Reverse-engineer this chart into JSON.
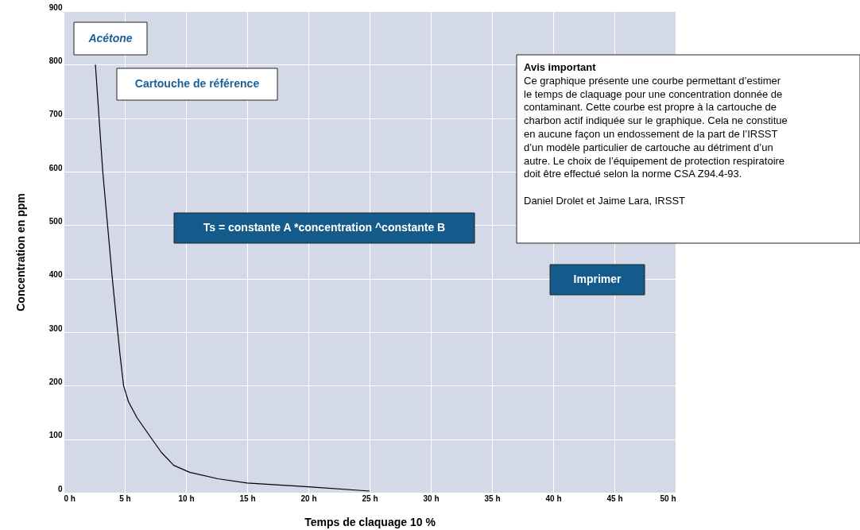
{
  "chart_data": {
    "type": "line",
    "xlabel": "Temps de claquage 10 %",
    "ylabel": "Concentration en ppm",
    "x": [
      2.6,
      3.2,
      4.0,
      4.6,
      4.9,
      5.3,
      6.0,
      7.1,
      8.0,
      9.0,
      10.3,
      12.6,
      15.0,
      20.0,
      25.0
    ],
    "series": [
      {
        "color": "#000000",
        "values": [
          800,
          600,
          396,
          260,
          200,
          170,
          140,
          104,
          75,
          51,
          38,
          26,
          18,
          11,
          3
        ]
      }
    ],
    "xlim": [
      0,
      50
    ],
    "ylim": [
      0,
      900
    ],
    "xticks": [
      {
        "value": 0,
        "label": "0 h"
      },
      {
        "value": 5,
        "label": "5 h"
      },
      {
        "value": 10,
        "label": "10 h"
      },
      {
        "value": 15,
        "label": "15 h"
      },
      {
        "value": 20,
        "label": "20 h"
      },
      {
        "value": 25,
        "label": "25 h"
      },
      {
        "value": 30,
        "label": "30 h"
      },
      {
        "value": 35,
        "label": "35 h"
      },
      {
        "value": 40,
        "label": "40 h"
      },
      {
        "value": 45,
        "label": "45 h"
      },
      {
        "value": 50,
        "label": "50 h"
      }
    ],
    "yticks": [
      0,
      100,
      200,
      300,
      400,
      500,
      600,
      700,
      800,
      900
    ],
    "grid": true,
    "marker": "none",
    "line_style": "solid",
    "annotations": [
      "Acétone",
      "Cartouche de référence",
      "Ts  = constante A *concentration ^constante B",
      "Avis important\nCe graphique présente une courbe permettant d’estimer\nle temps de claquage pour une concentration donnée de\ncontaminant. Cette courbe est propre à la cartouche de\ncharbon actif indiquée sur le graphique. Cela ne constitue\nen aucune façon un endossement de la part de l’IRSST\nd’un modèle particulier de cartouche au détriment d’un\nautre. Le choix de l’équipement de protection respiratoire\ndoit être effectué selon la norme CSA Z94.4-93.\n\nDaniel Drolet et Jaime Lara, IRSST",
      "Imprimer"
    ]
  }
}
